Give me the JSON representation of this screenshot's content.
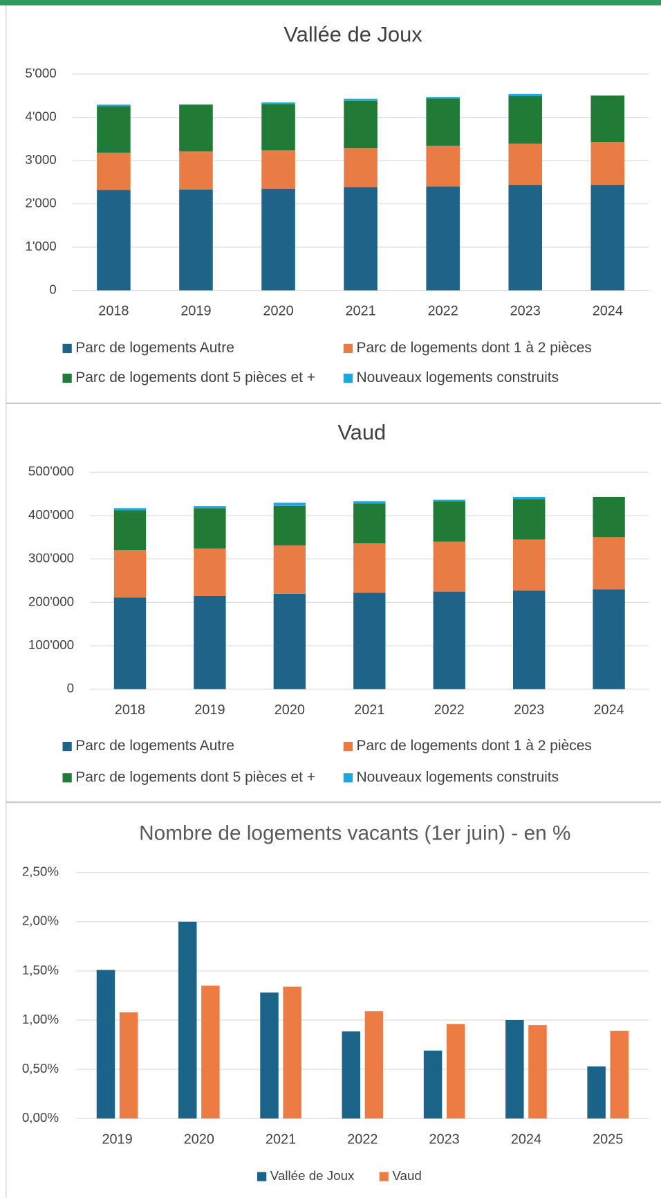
{
  "chart_data": [
    {
      "type": "bar",
      "stacked": true,
      "title": "Vallée de Joux",
      "categories": [
        "2018",
        "2019",
        "2020",
        "2021",
        "2022",
        "2023",
        "2024"
      ],
      "series": [
        {
          "name": "Parc de logements Autre",
          "color": "#1f6389",
          "values": [
            2320,
            2330,
            2350,
            2385,
            2400,
            2440,
            2440
          ]
        },
        {
          "name": "Parc de logements dont 1 à 2 pièces",
          "color": "#e97c44",
          "values": [
            860,
            885,
            885,
            900,
            940,
            950,
            990
          ]
        },
        {
          "name": "Parc de logements dont 5 pièces et +",
          "color": "#217a36",
          "values": [
            1080,
            1075,
            1075,
            1095,
            1095,
            1100,
            1075
          ]
        },
        {
          "name": "Nouveaux logements construits",
          "color": "#1ea7dc",
          "values": [
            35,
            10,
            35,
            50,
            35,
            50,
            0
          ]
        }
      ],
      "ylim": [
        0,
        5000
      ],
      "yticks": [
        0,
        {
          "value": 1000,
          "label": "1'000"
        },
        {
          "value": 2000,
          "label": "2'000"
        },
        {
          "value": 3000,
          "label": "3'000"
        },
        {
          "value": 4000,
          "label": "4'000"
        },
        {
          "value": 5000,
          "label": "5'000"
        }
      ],
      "grid": true,
      "legend": "bottom"
    },
    {
      "type": "bar",
      "stacked": true,
      "title": "Vaud",
      "categories": [
        "2018",
        "2019",
        "2020",
        "2021",
        "2022",
        "2023",
        "2024"
      ],
      "series": [
        {
          "name": "Parc de logements Autre",
          "color": "#1f6389",
          "values": [
            211000,
            215000,
            220000,
            222000,
            225000,
            227000,
            230000
          ]
        },
        {
          "name": "Parc de logements dont 1 à 2 pièces",
          "color": "#e97c44",
          "values": [
            109000,
            109000,
            111000,
            114000,
            115000,
            118000,
            120000
          ]
        },
        {
          "name": "Parc de logements dont 5 pièces et +",
          "color": "#217a36",
          "values": [
            92000,
            93000,
            91500,
            92000,
            93000,
            93000,
            93000
          ]
        },
        {
          "name": "Nouveaux logements construits",
          "color": "#1ea7dc",
          "values": [
            5000,
            5000,
            7000,
            5000,
            3600,
            5000,
            0
          ]
        }
      ],
      "ylim": [
        0,
        500000
      ],
      "yticks": [
        0,
        {
          "value": 100000,
          "label": "100'000"
        },
        {
          "value": 200000,
          "label": "200'000"
        },
        {
          "value": 300000,
          "label": "300'000"
        },
        {
          "value": 400000,
          "label": "400'000"
        },
        {
          "value": 500000,
          "label": "500'000"
        }
      ],
      "grid": true,
      "legend": "bottom"
    },
    {
      "type": "bar",
      "stacked": false,
      "title": "Nombre de logements vacants (1er juin) - en %",
      "categories": [
        "2019",
        "2020",
        "2021",
        "2022",
        "2023",
        "2024",
        "2025"
      ],
      "series": [
        {
          "name": "Vallée de Joux",
          "color": "#1b6388",
          "values": [
            1.51,
            2.0,
            1.28,
            0.885,
            0.69,
            1.0,
            0.53
          ]
        },
        {
          "name": "Vaud",
          "color": "#ec7c43",
          "values": [
            1.08,
            1.35,
            1.34,
            1.09,
            0.96,
            0.95,
            0.89
          ]
        }
      ],
      "ylim": [
        0,
        2.5
      ],
      "yticks": [
        {
          "value": 0,
          "label": "0,00%"
        },
        {
          "value": 0.5,
          "label": "0,50%"
        },
        {
          "value": 1,
          "label": "1,00%"
        },
        {
          "value": 1.5,
          "label": "1,50%"
        },
        {
          "value": 2,
          "label": "2,00%"
        },
        {
          "value": 2.5,
          "label": "2,50%"
        }
      ],
      "grid": true,
      "legend": "bottom"
    }
  ]
}
